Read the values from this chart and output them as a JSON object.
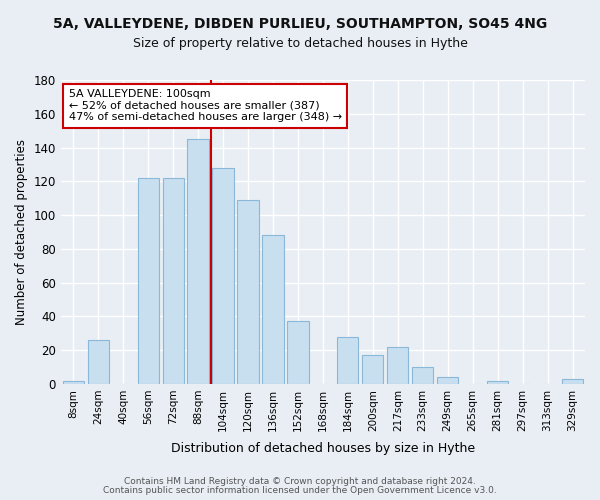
{
  "title": "5A, VALLEYDENE, DIBDEN PURLIEU, SOUTHAMPTON, SO45 4NG",
  "subtitle": "Size of property relative to detached houses in Hythe",
  "xlabel": "Distribution of detached houses by size in Hythe",
  "ylabel": "Number of detached properties",
  "bar_color": "#c8dff0",
  "bar_edge_color": "#8ab8d8",
  "categories": [
    "8sqm",
    "24sqm",
    "40sqm",
    "56sqm",
    "72sqm",
    "88sqm",
    "104sqm",
    "120sqm",
    "136sqm",
    "152sqm",
    "168sqm",
    "184sqm",
    "200sqm",
    "217sqm",
    "233sqm",
    "249sqm",
    "265sqm",
    "281sqm",
    "297sqm",
    "313sqm",
    "329sqm"
  ],
  "values": [
    2,
    26,
    0,
    122,
    122,
    145,
    128,
    109,
    88,
    37,
    0,
    28,
    17,
    22,
    10,
    4,
    0,
    2,
    0,
    0,
    3
  ],
  "ylim": [
    0,
    180
  ],
  "yticks": [
    0,
    20,
    40,
    60,
    80,
    100,
    120,
    140,
    160,
    180
  ],
  "annotation_line1": "5A VALLEYDENE: 100sqm",
  "annotation_line2": "← 52% of detached houses are smaller (387)",
  "annotation_line3": "47% of semi-detached houses are larger (348) →",
  "vline_x_index": 6,
  "vline_color": "#cc0000",
  "footer_line1": "Contains HM Land Registry data © Crown copyright and database right 2024.",
  "footer_line2": "Contains public sector information licensed under the Open Government Licence v3.0.",
  "background_color": "#e8eef4",
  "grid_color": "#ffffff",
  "annotation_box_color": "#ffffff",
  "annotation_box_edge_color": "#cc0000",
  "title_fontsize": 10,
  "subtitle_fontsize": 9
}
